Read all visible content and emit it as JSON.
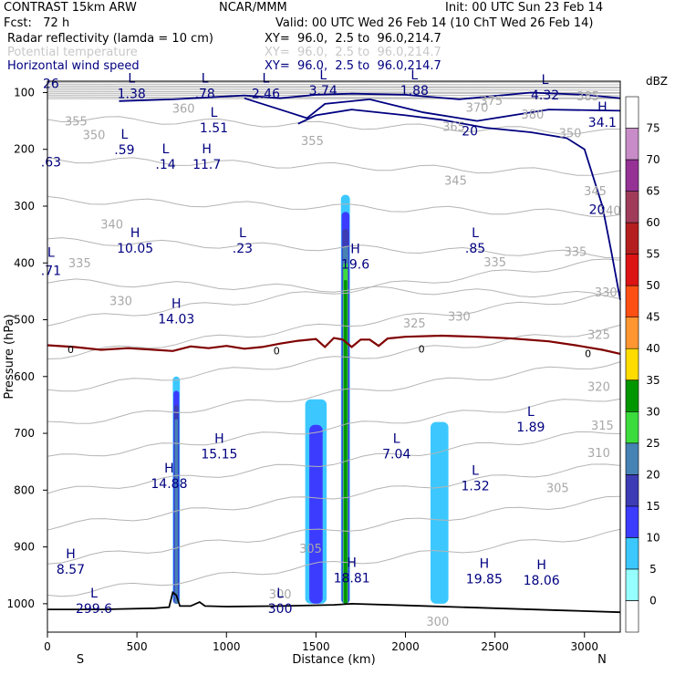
{
  "header": {
    "model": "CONTRAST 15km ARW",
    "org": "NCAR/MMM",
    "init": "Init: 00 UTC Sun 23 Feb 14",
    "fcst": "Fcst:   72 h",
    "valid": "Valid: 00 UTC Wed 26 Feb 14 (10 ChT Wed 26 Feb 14)",
    "field1": "Radar reflectivity (lamda = 10 cm)",
    "field1_xy": "XY=  96.0,  2.5 to  96.0,214.7",
    "field2": "Potential temperature",
    "field2_xy": "XY=  96.0,  2.5 to  96.0,214.7",
    "field3": "Horizontal wind speed",
    "field3_xy": "XY=  96.0,  2.5 to  96.0,214.7"
  },
  "colors": {
    "theta": "#b4b4b4",
    "wind": "#000080",
    "zero_line": "#800000",
    "terrain": "#000000",
    "header_gray": "#c8c8c8"
  },
  "chart_data": {
    "type": "cross-section",
    "xlabel": "Distance (km)",
    "ylabel": "Pressure (hPa)",
    "xlim": [
      0,
      3200
    ],
    "ylim": [
      1050,
      80
    ],
    "x_ticks": [
      0,
      500,
      1000,
      1500,
      2000,
      2500,
      3000
    ],
    "y_ticks": [
      100,
      200,
      300,
      400,
      500,
      600,
      700,
      800,
      900,
      1000
    ],
    "x_end_labels": {
      "left": "S",
      "right": "N"
    },
    "colorbar": {
      "title": "dBZ",
      "levels": [
        0,
        5,
        10,
        15,
        20,
        25,
        30,
        35,
        40,
        45,
        50,
        55,
        60,
        65,
        70,
        75
      ],
      "colors": [
        "#ffffff",
        "#96ffff",
        "#3cc8ff",
        "#3c3cff",
        "#3c3cb4",
        "#4682b4",
        "#3cdc3c",
        "#009600",
        "#ffdc00",
        "#ff9632",
        "#ff5014",
        "#dc1414",
        "#b41e1e",
        "#a03c5a",
        "#963296",
        "#c88cc8",
        "#ffffff"
      ]
    },
    "reflectivity_cells": [
      {
        "x": [
          700,
          740
        ],
        "p_top": 600,
        "p_bottom": 1000,
        "max_dbz": 20
      },
      {
        "x": [
          1440,
          1560
        ],
        "p_top": 640,
        "p_bottom": 1000,
        "max_dbz": 10
      },
      {
        "x": [
          1640,
          1690
        ],
        "p_top": 280,
        "p_bottom": 1000,
        "max_dbz": 30
      },
      {
        "x": [
          2140,
          2240
        ],
        "p_top": 680,
        "p_bottom": 1000,
        "max_dbz": 5
      }
    ],
    "theta_labels": [
      {
        "v": "385",
        "x": 3020,
        "p": 108
      },
      {
        "v": "380",
        "x": 2710,
        "p": 140
      },
      {
        "v": "375",
        "x": 2480,
        "p": 116
      },
      {
        "v": "370",
        "x": 2400,
        "p": 128
      },
      {
        "v": "365",
        "x": 2270,
        "p": 162
      },
      {
        "v": "360",
        "x": 760,
        "p": 130
      },
      {
        "v": "355",
        "x": 160,
        "p": 152
      },
      {
        "v": "355",
        "x": 1480,
        "p": 187
      },
      {
        "v": "350",
        "x": 260,
        "p": 176
      },
      {
        "v": "350",
        "x": 2920,
        "p": 173
      },
      {
        "v": "345",
        "x": 2280,
        "p": 257
      },
      {
        "v": "345",
        "x": 3060,
        "p": 275
      },
      {
        "v": "340",
        "x": 360,
        "p": 334
      },
      {
        "v": "340",
        "x": 3140,
        "p": 310
      },
      {
        "v": "335",
        "x": 180,
        "p": 402
      },
      {
        "v": "335",
        "x": 2500,
        "p": 400
      },
      {
        "v": "335",
        "x": 2950,
        "p": 382
      },
      {
        "v": "330",
        "x": 410,
        "p": 469
      },
      {
        "v": "330",
        "x": 2300,
        "p": 496
      },
      {
        "v": "330",
        "x": 3120,
        "p": 453
      },
      {
        "v": "325",
        "x": 2050,
        "p": 508
      },
      {
        "v": "325",
        "x": 3080,
        "p": 528
      },
      {
        "v": "320",
        "x": 3080,
        "p": 620
      },
      {
        "v": "315",
        "x": 3100,
        "p": 688
      },
      {
        "v": "310",
        "x": 3080,
        "p": 736
      },
      {
        "v": "305",
        "x": 2850,
        "p": 798
      },
      {
        "v": "305",
        "x": 1470,
        "p": 905
      },
      {
        "v": "300",
        "x": 2180,
        "p": 1033
      },
      {
        "v": "300",
        "x": 1300,
        "p": 985
      }
    ],
    "wind_labels": [
      {
        "v": "20",
        "x": 2360,
        "p": 169
      },
      {
        "v": "20",
        "x": 3070,
        "p": 307
      }
    ],
    "zero_labels": [
      {
        "v": "0",
        "x": 130,
        "p": 554
      },
      {
        "v": "0",
        "x": 1280,
        "p": 556
      },
      {
        "v": "0",
        "x": 2090,
        "p": 553
      },
      {
        "v": "0",
        "x": 3020,
        "p": 561
      }
    ],
    "extrema": [
      {
        "t": "L",
        "v": "1.38",
        "x": 470,
        "p": 86
      },
      {
        "t": "L",
        "v": ".78",
        "x": 880,
        "p": 86
      },
      {
        "t": "L",
        "v": "2.46",
        "x": 1220,
        "p": 86
      },
      {
        "t": "L",
        "v": "3.74",
        "x": 1540,
        "p": 80
      },
      {
        "t": "L",
        "v": "1.88",
        "x": 2050,
        "p": 80
      },
      {
        "t": "L",
        "v": "4.32",
        "x": 2780,
        "p": 88
      },
      {
        "t": "H",
        "v": "34.1",
        "x": 3100,
        "p": 136
      },
      {
        "t": "L",
        "v": "1.51",
        "x": 930,
        "p": 146
      },
      {
        "t": "L",
        "v": ".59",
        "x": 430,
        "p": 184
      },
      {
        "t": "L",
        "v": ".14",
        "x": 660,
        "p": 210
      },
      {
        "t": "H",
        "v": "11.7",
        "x": 890,
        "p": 210
      },
      {
        "t": "H",
        "v": "10.05",
        "x": 490,
        "p": 358
      },
      {
        "t": "L",
        "v": ".23",
        "x": 1090,
        "p": 358
      },
      {
        "t": "H",
        "v": "19.6",
        "x": 1720,
        "p": 386
      },
      {
        "t": "L",
        "v": ".85",
        "x": 2390,
        "p": 358
      },
      {
        "t": "H",
        "v": "14.03",
        "x": 720,
        "p": 482
      },
      {
        "t": "L",
        "v": "1.89",
        "x": 2700,
        "p": 673
      },
      {
        "t": "H",
        "v": "15.15",
        "x": 960,
        "p": 720
      },
      {
        "t": "L",
        "v": "7.04",
        "x": 1950,
        "p": 720
      },
      {
        "t": "H",
        "v": "14.88",
        "x": 680,
        "p": 772
      },
      {
        "t": "L",
        "v": "1.32",
        "x": 2390,
        "p": 776
      },
      {
        "t": "H",
        "v": "8.57",
        "x": 130,
        "p": 923
      },
      {
        "t": "H",
        "v": "18.81",
        "x": 1700,
        "p": 938
      },
      {
        "t": "H",
        "v": "19.85",
        "x": 2440,
        "p": 940
      },
      {
        "t": "H",
        "v": "18.06",
        "x": 2760,
        "p": 942
      },
      {
        "t": "L",
        "v": "299.6",
        "x": 260,
        "p": 992
      },
      {
        "t": "L",
        "v": "300",
        "x": 1300,
        "p": 992
      }
    ],
    "edge_labels": [
      {
        "t": "",
        "v": "26",
        "x": 20,
        "p": 86
      },
      {
        "t": "",
        "v": ".63",
        "x": 20,
        "p": 224
      },
      {
        "t": "L",
        "v": ".71",
        "x": 20,
        "p": 415
      }
    ],
    "zero_isotherm": {
      "x": [
        0,
        150,
        300,
        450,
        600,
        700,
        800,
        900,
        1000,
        1100,
        1200,
        1300,
        1400,
        1500,
        1550,
        1600,
        1650,
        1700,
        1750,
        1800,
        1850,
        1900,
        2000,
        2200,
        2400,
        2600,
        2800,
        2950,
        3100,
        3200
      ],
      "p": [
        545,
        548,
        553,
        550,
        553,
        555,
        547,
        550,
        546,
        551,
        548,
        542,
        537,
        534,
        548,
        532,
        535,
        548,
        535,
        535,
        546,
        533,
        530,
        528,
        530,
        533,
        538,
        545,
        553,
        560
      ]
    },
    "terrain": {
      "x": [
        0,
        300,
        600,
        680,
        700,
        720,
        740,
        800,
        850,
        880,
        1000,
        1300,
        1600,
        1700,
        2000,
        2500,
        2900,
        3200
      ],
      "p": [
        1010,
        1010,
        1008,
        1006,
        980,
        985,
        1004,
        1004,
        997,
        1004,
        1005,
        1004,
        1002,
        1000,
        1003,
        1008,
        1012,
        1015
      ]
    },
    "wind_jet_contours": [
      {
        "x": [
          400,
          700,
          1100,
          1300,
          1500,
          1700,
          2000,
          2300,
          2700,
          3000,
          3200
        ],
        "p": [
          115,
          112,
          105,
          110,
          104,
          102,
          104,
          112,
          100,
          104,
          110
        ]
      },
      {
        "x": [
          1100,
          1350,
          1450,
          1550,
          1800,
          2100,
          2400,
          2800,
          3200
        ],
        "p": [
          110,
          135,
          145,
          120,
          112,
          135,
          150,
          130,
          132
        ]
      },
      {
        "x": [
          1400,
          1500,
          1700,
          2000,
          2200,
          2450,
          2700,
          2900,
          3000,
          3050,
          3100,
          3150,
          3200
        ],
        "p": [
          155,
          140,
          130,
          140,
          148,
          162,
          170,
          180,
          200,
          250,
          300,
          380,
          465
        ]
      }
    ]
  }
}
